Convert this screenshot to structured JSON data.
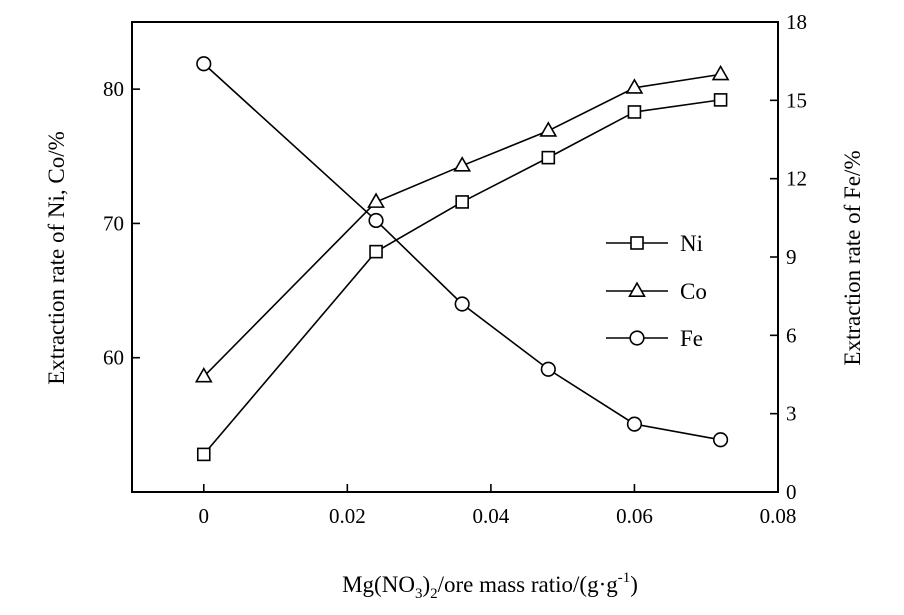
{
  "chart_data": {
    "type": "line",
    "title": "",
    "x": [
      0,
      0.024,
      0.036,
      0.048,
      0.06,
      0.072
    ],
    "xlabel": {
      "prefix": "Mg(NO",
      "sub": "3",
      "mid": ")",
      "sub2": "2",
      "suffix": "/ore mass ratio/(g·g",
      "sup": "-1",
      "end": ")"
    },
    "ylabel_left": "Extraction rate of Ni, Co/%",
    "ylabel_right": "Extraction rate of Fe/%",
    "xlim": [
      -0.01,
      0.08
    ],
    "ylim_left": [
      50,
      85
    ],
    "ylim_right": [
      0,
      18
    ],
    "x_ticks": [
      0,
      0.02,
      0.04,
      0.06,
      0.08
    ],
    "x_tick_labels": [
      "0",
      "0.02",
      "0.04",
      "0.06",
      "0.08"
    ],
    "y_left_ticks": [
      60,
      70,
      80
    ],
    "y_left_tick_labels": [
      "60",
      "70",
      "80"
    ],
    "y_right_ticks": [
      0,
      3,
      6,
      9,
      12,
      15,
      18
    ],
    "y_right_tick_labels": [
      "0",
      "3",
      "6",
      "9",
      "12",
      "15",
      "18"
    ],
    "grid": false,
    "legend_position": "right-center",
    "series": [
      {
        "name": "Ni",
        "axis": "left",
        "marker": "square",
        "values": [
          52.8,
          67.9,
          71.6,
          74.9,
          78.3,
          79.2
        ]
      },
      {
        "name": "Co",
        "axis": "left",
        "marker": "triangle",
        "values": [
          58.6,
          71.6,
          74.3,
          76.9,
          80.1,
          81.1
        ]
      },
      {
        "name": "Fe",
        "axis": "right",
        "marker": "circle",
        "values": [
          16.4,
          10.4,
          7.2,
          4.7,
          2.6,
          2.0
        ]
      }
    ]
  }
}
